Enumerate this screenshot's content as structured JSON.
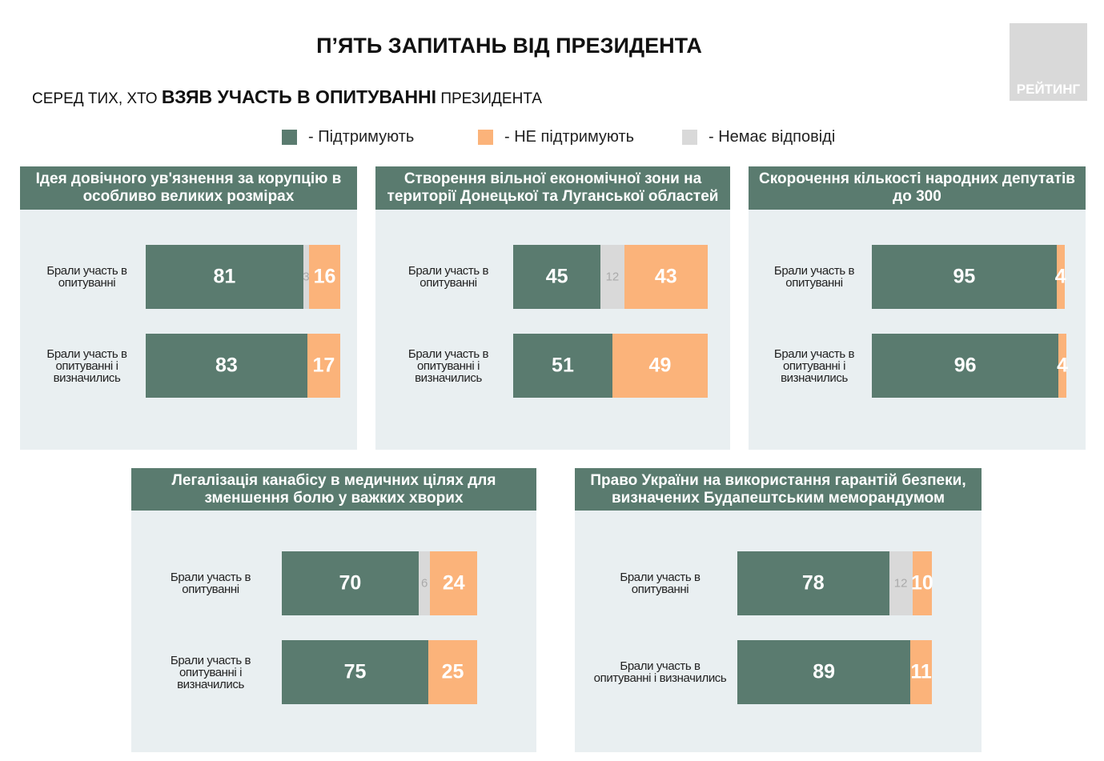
{
  "header": {
    "title": "П’ЯТЬ ЗАПИТАНЬ ВІД ПРЕЗИДЕНТА",
    "subtitle_pre": "СЕРЕД ТИХ, ХТО ",
    "subtitle_bold": "ВЗЯВ УЧАСТЬ В ОПИТУВАННІ",
    "subtitle_post": " ПРЕЗИДЕНТА",
    "logo": "РЕЙТИНГ"
  },
  "legend": [
    {
      "name": "- Підтримують",
      "color": "#5a7b6f"
    },
    {
      "name": "- НЕ підтримують",
      "color": "#fbb37a"
    },
    {
      "name": "- Немає відповіді",
      "color": "#d9d9d9"
    }
  ],
  "chart_data": [
    {
      "type": "stacked-bar-h",
      "title": "Ідея довічного ув'язнення за корупцію в особливо великих розмірах",
      "categories": [
        "Брали участь в опитуванні",
        "Брали участь в опитуванні і визначились"
      ],
      "xlim": [
        0,
        100
      ],
      "series": [
        {
          "color": "#5a7b6f",
          "values": [
            81,
            83
          ]
        },
        {
          "color": "#d9d9d9",
          "values": [
            3,
            null
          ]
        },
        {
          "color": "#fbb37a",
          "values": [
            16,
            17
          ]
        }
      ]
    },
    {
      "type": "stacked-bar-h",
      "title": "Створення вільної економічної зони на території Донецької та Луганської областей",
      "categories": [
        "Брали участь в опитуванні",
        "Брали участь в опитуванні і визначились"
      ],
      "xlim": [
        0,
        100
      ],
      "series": [
        {
          "color": "#5a7b6f",
          "values": [
            45,
            51
          ]
        },
        {
          "color": "#d9d9d9",
          "values": [
            12,
            null
          ]
        },
        {
          "color": "#fbb37a",
          "values": [
            43,
            49
          ]
        }
      ]
    },
    {
      "type": "stacked-bar-h",
      "title": "Скорочення кількості народних депутатів до 300",
      "categories": [
        "Брали участь в опитуванні",
        "Брали участь в опитуванні і визначились"
      ],
      "xlim": [
        0,
        100
      ],
      "series": [
        {
          "color": "#5a7b6f",
          "values": [
            95,
            96
          ]
        },
        {
          "color": "#d9d9d9",
          "values": [
            null,
            null
          ]
        },
        {
          "color": "#fbb37a",
          "values": [
            4,
            4
          ]
        }
      ]
    },
    {
      "type": "stacked-bar-h",
      "title": "Легалізація канабісу в медичних цілях для зменшення болю у важких хворих",
      "categories": [
        "Брали участь в опитуванні",
        "Брали участь в опитуванні і визначились"
      ],
      "xlim": [
        0,
        100
      ],
      "series": [
        {
          "color": "#5a7b6f",
          "values": [
            70,
            75
          ]
        },
        {
          "color": "#d9d9d9",
          "values": [
            6,
            null
          ]
        },
        {
          "color": "#fbb37a",
          "values": [
            24,
            25
          ]
        }
      ]
    },
    {
      "type": "stacked-bar-h",
      "title": "Право України на використання гарантій безпеки, визначених Будапештським меморандумом",
      "categories": [
        "Брали участь в опитуванні",
        "Брали участь в опитуванні і визначились"
      ],
      "xlim": [
        0,
        100
      ],
      "series": [
        {
          "color": "#5a7b6f",
          "values": [
            78,
            89
          ]
        },
        {
          "color": "#d9d9d9",
          "values": [
            12,
            null
          ]
        },
        {
          "color": "#fbb37a",
          "values": [
            10,
            11
          ]
        }
      ]
    }
  ]
}
